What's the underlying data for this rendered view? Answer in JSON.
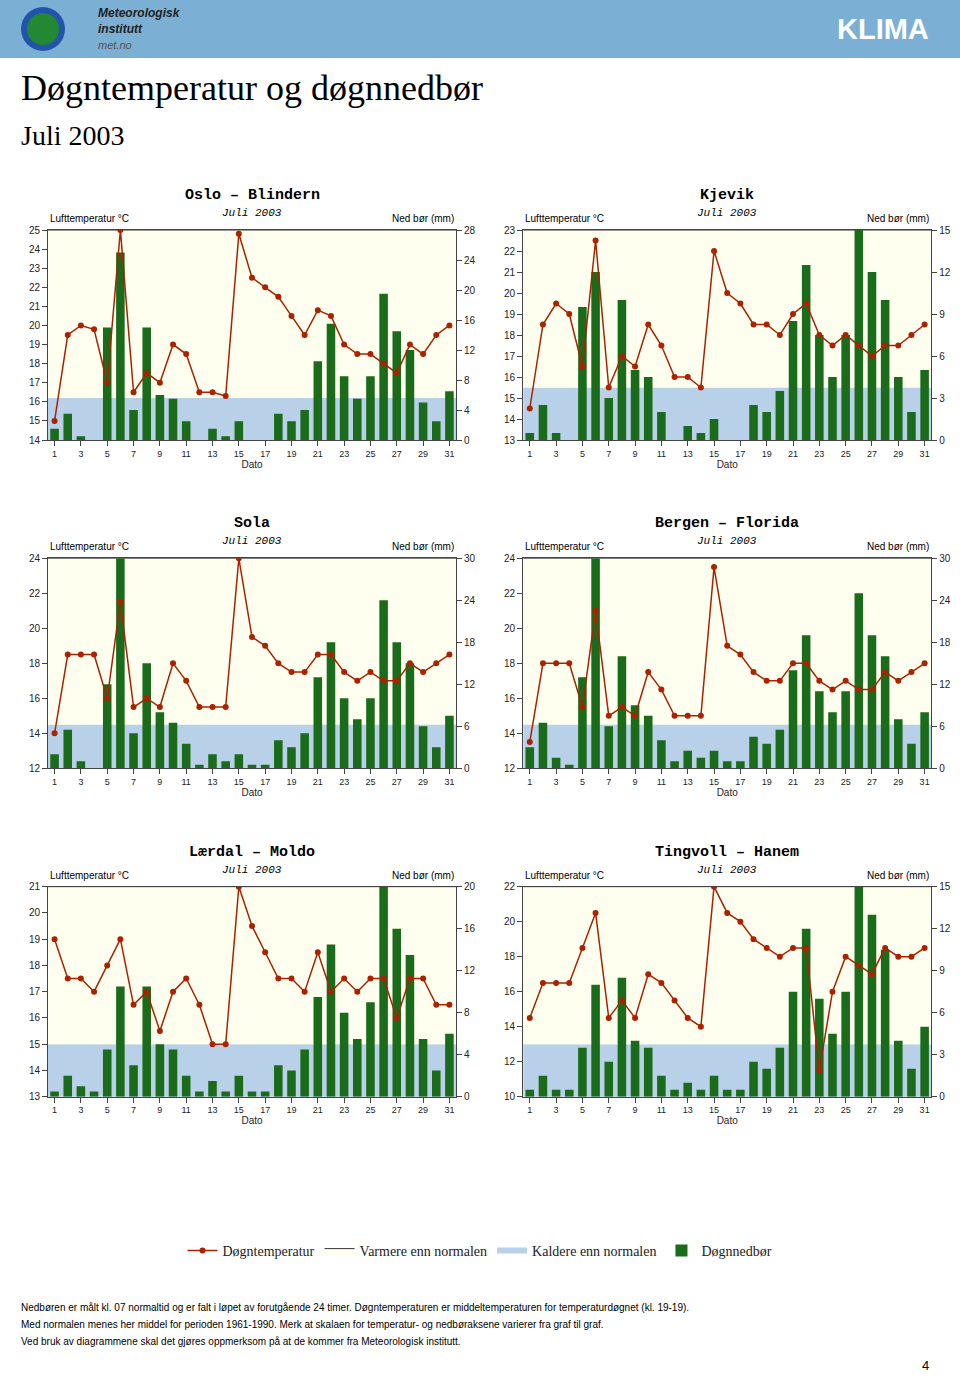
{
  "header": {
    "color": "#7bafd4",
    "logo_colors": [
      "#2255aa",
      "#228833"
    ],
    "texts": [
      "Meteorologisk",
      "institutt",
      "met.no"
    ],
    "label": "KLIMA"
  },
  "title": "Døgntemperatur og døgnnedbør",
  "subtitle": "Juli 2003",
  "background_color": "#ffffff",
  "bands": {
    "above": {
      "name": "Varmere enn normalen",
      "color": "#fffff0"
    },
    "below": {
      "name": "Kaldere enn normalen",
      "color": "#b8d0e8"
    }
  },
  "chart_data": [
    {
      "type": "combo",
      "title": "Oslo – Blindern",
      "subtitle": "Juli 2003",
      "xlabel": "Dato",
      "ylabel": "Lufttemperatur °C",
      "y2label": "Ned bør (mm)",
      "grid": "y",
      "x": [
        1,
        2,
        3,
        4,
        5,
        6,
        7,
        8,
        9,
        10,
        11,
        12,
        13,
        14,
        15,
        16,
        17,
        18,
        19,
        20,
        21,
        22,
        23,
        24,
        25,
        26,
        27,
        28,
        29,
        30,
        31
      ],
      "xlim": [
        0.5,
        31.5
      ],
      "xticks": [
        1,
        3,
        5,
        7,
        9,
        11,
        13,
        15,
        17,
        19,
        21,
        23,
        25,
        27,
        29,
        31
      ],
      "ylim": [
        14,
        25
      ],
      "yticks": [
        14,
        15,
        16,
        17,
        18,
        19,
        20,
        21,
        22,
        23,
        24,
        25
      ],
      "y2lim": [
        0,
        28
      ],
      "y2ticks": [
        0,
        4,
        8,
        12,
        16,
        20,
        24,
        28
      ],
      "normal": 16.2,
      "series": [
        {
          "name": "Døgnnedbør",
          "type": "bar",
          "axis": "y2",
          "color": "#1a6b1a",
          "values": [
            1.5,
            3.5,
            0.5,
            0.0,
            15.0,
            25.0,
            4.0,
            15.0,
            6.0,
            5.5,
            2.5,
            0.0,
            1.5,
            0.5,
            2.5,
            0.0,
            0.0,
            3.5,
            2.5,
            4.0,
            10.5,
            15.5,
            8.5,
            5.5,
            8.5,
            19.5,
            14.5,
            12.0,
            5.0,
            2.5,
            6.5
          ]
        },
        {
          "name": "Døgntemperatur",
          "type": "line",
          "marker": "o",
          "color": "#aa2200",
          "values": [
            15.0,
            19.5,
            20.0,
            19.8,
            17.0,
            25.0,
            16.5,
            17.5,
            17.0,
            19.0,
            18.5,
            16.5,
            16.5,
            16.3,
            24.8,
            22.5,
            22.0,
            21.5,
            20.5,
            19.5,
            20.8,
            20.5,
            19.0,
            18.5,
            18.5,
            18.0,
            17.5,
            19.0,
            18.5,
            19.5,
            20.0
          ]
        }
      ]
    },
    {
      "type": "combo",
      "title": "Kjevik",
      "subtitle": "Juli 2003",
      "xlabel": "Dato",
      "ylabel": "Lufttemperatur °C",
      "y2label": "Ned bør (mm)",
      "grid": "y",
      "x": [
        1,
        2,
        3,
        4,
        5,
        6,
        7,
        8,
        9,
        10,
        11,
        12,
        13,
        14,
        15,
        16,
        17,
        18,
        19,
        20,
        21,
        22,
        23,
        24,
        25,
        26,
        27,
        28,
        29,
        30,
        31
      ],
      "xlim": [
        0.5,
        31.5
      ],
      "xticks": [
        1,
        3,
        5,
        7,
        9,
        11,
        13,
        15,
        17,
        19,
        21,
        23,
        25,
        27,
        29,
        31
      ],
      "ylim": [
        13,
        23
      ],
      "yticks": [
        13,
        14,
        15,
        16,
        17,
        18,
        19,
        20,
        21,
        22,
        23
      ],
      "y2lim": [
        0,
        15
      ],
      "y2ticks": [
        0,
        3,
        6,
        9,
        12,
        15
      ],
      "normal": 15.5,
      "series": [
        {
          "name": "Døgnnedbør",
          "type": "bar",
          "axis": "y2",
          "color": "#1a6b1a",
          "values": [
            0.5,
            2.5,
            0.5,
            0.0,
            9.5,
            12.0,
            3.0,
            10.0,
            5.0,
            4.5,
            2.0,
            0.0,
            1.0,
            0.5,
            1.5,
            0.0,
            0.0,
            2.5,
            2.0,
            3.5,
            8.5,
            12.5,
            7.5,
            4.5,
            7.5,
            15.0,
            12.0,
            10.0,
            4.5,
            2.0,
            5.0
          ]
        },
        {
          "name": "Døgntemperatur",
          "type": "line",
          "marker": "o",
          "color": "#aa2200",
          "values": [
            14.5,
            18.5,
            19.5,
            19.0,
            16.5,
            22.5,
            15.5,
            17.0,
            16.5,
            18.5,
            17.5,
            16.0,
            16.0,
            15.5,
            22.0,
            20.0,
            19.5,
            18.5,
            18.5,
            18.0,
            19.0,
            19.5,
            18.0,
            17.5,
            18.0,
            17.5,
            17.0,
            17.5,
            17.5,
            18.0,
            18.5
          ]
        }
      ]
    },
    {
      "type": "combo",
      "title": "Sola",
      "subtitle": "Juli 2003",
      "xlabel": "Dato",
      "ylabel": "Lufttemperatur °C",
      "y2label": "Ned bør (mm)",
      "grid": "y",
      "x": [
        1,
        2,
        3,
        4,
        5,
        6,
        7,
        8,
        9,
        10,
        11,
        12,
        13,
        14,
        15,
        16,
        17,
        18,
        19,
        20,
        21,
        22,
        23,
        24,
        25,
        26,
        27,
        28,
        29,
        30,
        31
      ],
      "xlim": [
        0.5,
        31.5
      ],
      "xticks": [
        1,
        3,
        5,
        7,
        9,
        11,
        13,
        15,
        17,
        19,
        21,
        23,
        25,
        27,
        29,
        31
      ],
      "ylim": [
        12,
        24
      ],
      "yticks": [
        12,
        14,
        16,
        18,
        20,
        22,
        24
      ],
      "y2lim": [
        0,
        30
      ],
      "y2ticks": [
        0,
        6,
        12,
        18,
        24,
        30
      ],
      "normal": 14.5,
      "series": [
        {
          "name": "Døgnnedbør",
          "type": "bar",
          "axis": "y2",
          "color": "#1a6b1a",
          "values": [
            2.0,
            5.5,
            1.0,
            0.0,
            12.0,
            30.0,
            5.0,
            15.0,
            8.0,
            6.5,
            3.5,
            0.5,
            2.0,
            1.0,
            2.0,
            0.5,
            0.5,
            4.0,
            3.0,
            5.0,
            13.0,
            18.0,
            10.0,
            7.0,
            10.0,
            24.0,
            18.0,
            15.0,
            6.0,
            3.0,
            7.5
          ]
        },
        {
          "name": "Døgntemperatur",
          "type": "line",
          "marker": "o",
          "color": "#aa2200",
          "values": [
            14.0,
            18.5,
            18.5,
            18.5,
            16.0,
            21.5,
            15.5,
            16.0,
            15.5,
            18.0,
            17.0,
            15.5,
            15.5,
            15.5,
            24.0,
            19.5,
            19.0,
            18.0,
            17.5,
            17.5,
            18.5,
            18.5,
            17.5,
            17.0,
            17.5,
            17.0,
            17.0,
            18.0,
            17.5,
            18.0,
            18.5
          ]
        }
      ]
    },
    {
      "type": "combo",
      "title": "Bergen – Florida",
      "subtitle": "Juli 2003",
      "xlabel": "Dato",
      "ylabel": "Lufttemperatur °C",
      "y2label": "Ned bør (mm)",
      "grid": "y",
      "x": [
        1,
        2,
        3,
        4,
        5,
        6,
        7,
        8,
        9,
        10,
        11,
        12,
        13,
        14,
        15,
        16,
        17,
        18,
        19,
        20,
        21,
        22,
        23,
        24,
        25,
        26,
        27,
        28,
        29,
        30,
        31
      ],
      "xlim": [
        0.5,
        31.5
      ],
      "xticks": [
        1,
        3,
        5,
        7,
        9,
        11,
        13,
        15,
        17,
        19,
        21,
        23,
        25,
        27,
        29,
        31
      ],
      "ylim": [
        12,
        24
      ],
      "yticks": [
        12,
        14,
        16,
        18,
        20,
        22,
        24
      ],
      "y2lim": [
        0,
        30
      ],
      "y2ticks": [
        0,
        6,
        12,
        18,
        24,
        30
      ],
      "normal": 14.5,
      "series": [
        {
          "name": "Døgnnedbør",
          "type": "bar",
          "axis": "y2",
          "color": "#1a6b1a",
          "values": [
            3.0,
            6.5,
            1.5,
            0.5,
            13.0,
            30.0,
            6.0,
            16.0,
            9.0,
            7.5,
            4.0,
            1.0,
            2.5,
            1.5,
            2.5,
            1.0,
            1.0,
            4.5,
            3.5,
            5.5,
            14.0,
            19.0,
            11.0,
            8.0,
            11.0,
            25.0,
            19.0,
            16.0,
            7.0,
            3.5,
            8.0
          ]
        },
        {
          "name": "Døgntemperatur",
          "type": "line",
          "marker": "o",
          "color": "#aa2200",
          "values": [
            13.5,
            18.0,
            18.0,
            18.0,
            15.5,
            21.0,
            15.0,
            15.5,
            15.0,
            17.5,
            16.5,
            15.0,
            15.0,
            15.0,
            23.5,
            19.0,
            18.5,
            17.5,
            17.0,
            17.0,
            18.0,
            18.0,
            17.0,
            16.5,
            17.0,
            16.5,
            16.5,
            17.5,
            17.0,
            17.5,
            18.0
          ]
        }
      ]
    },
    {
      "type": "combo",
      "title": "Lærdal – Moldo",
      "subtitle": "Juli 2003",
      "xlabel": "Dato",
      "ylabel": "Lufttemperatur °C",
      "y2label": "Ned bør (mm)",
      "grid": "y",
      "x": [
        1,
        2,
        3,
        4,
        5,
        6,
        7,
        8,
        9,
        10,
        11,
        12,
        13,
        14,
        15,
        16,
        17,
        18,
        19,
        20,
        21,
        22,
        23,
        24,
        25,
        26,
        27,
        28,
        29,
        30,
        31
      ],
      "xlim": [
        0.5,
        31.5
      ],
      "xticks": [
        1,
        3,
        5,
        7,
        9,
        11,
        13,
        15,
        17,
        19,
        21,
        23,
        25,
        27,
        29,
        31
      ],
      "ylim": [
        13,
        21
      ],
      "yticks": [
        13,
        14,
        15,
        16,
        17,
        18,
        19,
        20,
        21
      ],
      "y2lim": [
        0,
        20
      ],
      "y2ticks": [
        0,
        4,
        8,
        12,
        16,
        20
      ],
      "normal": 15.0,
      "series": [
        {
          "name": "Døgnnedbør",
          "type": "bar",
          "axis": "y2",
          "color": "#1a6b1a",
          "values": [
            0.5,
            2.0,
            1.0,
            0.5,
            4.5,
            10.5,
            3.0,
            10.5,
            5.0,
            4.5,
            2.0,
            0.5,
            1.5,
            0.5,
            2.0,
            0.5,
            0.5,
            3.0,
            2.5,
            4.5,
            9.5,
            14.5,
            8.0,
            5.5,
            9.0,
            20.0,
            16.0,
            13.5,
            5.5,
            2.5,
            6.0
          ]
        },
        {
          "name": "Døgntemperatur",
          "type": "line",
          "marker": "o",
          "color": "#aa2200",
          "values": [
            19.0,
            17.5,
            17.5,
            17.0,
            18.0,
            19.0,
            16.5,
            17.0,
            15.5,
            17.0,
            17.5,
            16.5,
            15.0,
            15.0,
            21.0,
            19.5,
            18.5,
            17.5,
            17.5,
            17.0,
            18.5,
            17.0,
            17.5,
            17.0,
            17.5,
            17.5,
            16.0,
            17.5,
            17.5,
            16.5,
            16.5
          ]
        }
      ]
    },
    {
      "type": "combo",
      "title": "Tingvoll – Hanem",
      "subtitle": "Juli 2003",
      "xlabel": "Dato",
      "ylabel": "Lufttemperatur °C",
      "y2label": "Ned bør (mm)",
      "grid": "y",
      "x": [
        1,
        2,
        3,
        4,
        5,
        6,
        7,
        8,
        9,
        10,
        11,
        12,
        13,
        14,
        15,
        16,
        17,
        18,
        19,
        20,
        21,
        22,
        23,
        24,
        25,
        26,
        27,
        28,
        29,
        30,
        31
      ],
      "xlim": [
        0.5,
        31.5
      ],
      "xticks": [
        1,
        3,
        5,
        7,
        9,
        11,
        13,
        15,
        17,
        19,
        21,
        23,
        25,
        27,
        29,
        31
      ],
      "ylim": [
        10,
        22
      ],
      "yticks": [
        10,
        12,
        14,
        16,
        18,
        20,
        22
      ],
      "y2lim": [
        0,
        15
      ],
      "y2ticks": [
        0,
        3,
        6,
        9,
        12,
        15
      ],
      "normal": 13.0,
      "series": [
        {
          "name": "Døgnnedbør",
          "type": "bar",
          "axis": "y2",
          "color": "#1a6b1a",
          "values": [
            0.5,
            1.5,
            0.5,
            0.5,
            3.5,
            8.0,
            2.5,
            8.5,
            4.0,
            3.5,
            1.5,
            0.5,
            1.0,
            0.5,
            1.5,
            0.5,
            0.5,
            2.5,
            2.0,
            3.5,
            7.5,
            12.0,
            7.0,
            4.5,
            7.5,
            15.0,
            13.0,
            10.5,
            4.0,
            2.0,
            5.0
          ]
        },
        {
          "name": "Døgntemperatur",
          "type": "line",
          "marker": "o",
          "color": "#aa2200",
          "values": [
            14.5,
            16.5,
            16.5,
            16.5,
            18.5,
            20.5,
            14.5,
            15.5,
            14.5,
            17.0,
            16.5,
            15.5,
            14.5,
            14.0,
            22.0,
            20.5,
            20.0,
            19.0,
            18.5,
            18.0,
            18.5,
            18.5,
            11.5,
            16.0,
            18.0,
            17.5,
            17.0,
            18.5,
            18.0,
            18.0,
            18.5
          ]
        }
      ]
    }
  ],
  "footer": [
    "Nedbøren er målt kl. 07 normaltid og er falt i løpet av forutgående 24 timer. Døgntemperaturen er middeltemperaturen for temperaturdøgnet (kl. 19-19).",
    "Med normalen menes her middel for perioden 1961-1990. Merk at skalaen for temperatur- og nedbøraksene varierer fra graf til graf.",
    "Ved bruk av diagrammene skal det gjøres oppmerksom på at de kommer fra Meteorologisk institutt."
  ],
  "page_number": "4"
}
